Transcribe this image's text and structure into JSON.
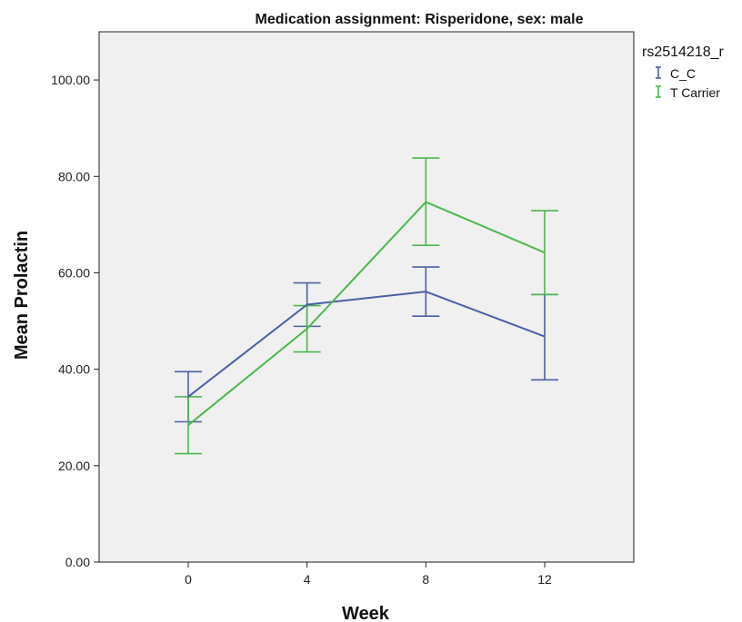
{
  "chart_data": {
    "type": "line",
    "title": "Medication assignment: Risperidone, sex: male",
    "xlabel": "Week",
    "ylabel": "Mean Prolactin",
    "x": [
      0,
      4,
      8,
      12
    ],
    "x_tick_labels": [
      "0",
      "4",
      "8",
      "12"
    ],
    "xlim": [
      -3,
      15
    ],
    "ylim": [
      0,
      110
    ],
    "y_ticks": [
      0,
      20,
      40,
      60,
      80,
      100
    ],
    "y_tick_labels": [
      "0.00",
      "20.00",
      "40.00",
      "60.00",
      "80.00",
      "100.00"
    ],
    "grid": false,
    "legend": {
      "title": "rs2514218_r",
      "placement": "outside-right"
    },
    "series": [
      {
        "name": "C_C",
        "color": "#4b5fa6",
        "values": [
          34.3,
          53.4,
          56.1,
          46.8
        ],
        "error_low": [
          29.1,
          48.9,
          51.0,
          37.8
        ],
        "error_high": [
          39.5,
          57.9,
          61.2,
          55.5
        ]
      },
      {
        "name": "T Carrier",
        "color": "#4cb84c",
        "values": [
          28.4,
          48.4,
          74.7,
          64.2
        ],
        "error_low": [
          22.5,
          43.6,
          65.7,
          55.5
        ],
        "error_high": [
          34.3,
          53.2,
          83.8,
          72.9
        ]
      }
    ],
    "plot_background": "#eff0ef"
  }
}
